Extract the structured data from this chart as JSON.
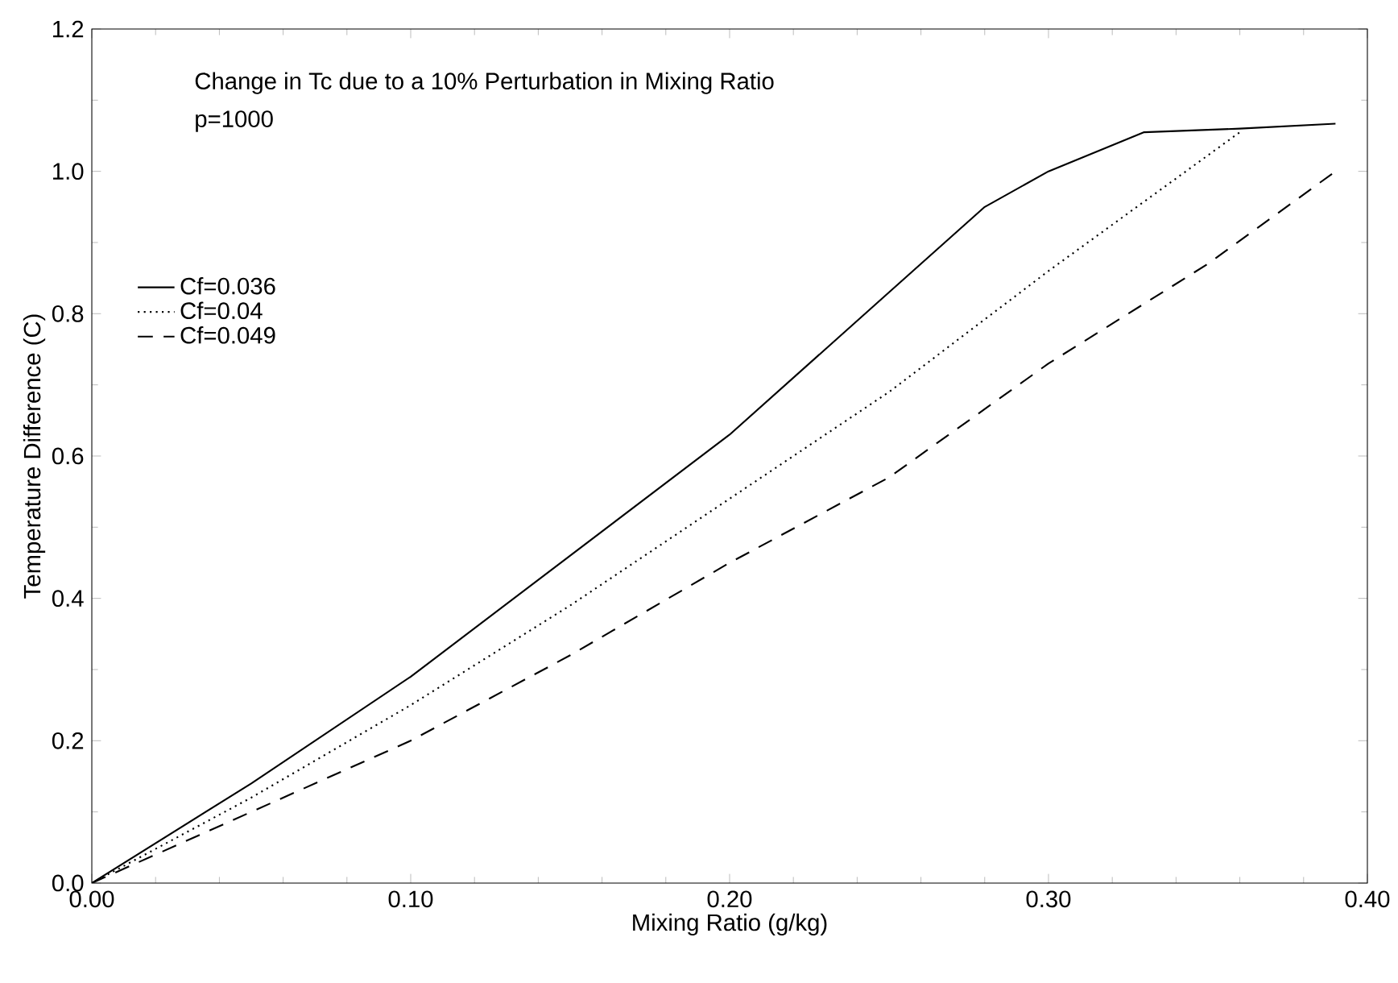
{
  "chart_data": {
    "type": "line",
    "xlabel": "Mixing Ratio (g/kg)",
    "ylabel": "Temperature Difference (C)",
    "annotations": [
      "Change in Tc due to a 10% Perturbation in Mixing Ratio",
      "p=1000"
    ],
    "xlim": [
      0,
      0.4
    ],
    "ylim": [
      0,
      1.2
    ],
    "xticks": [
      {
        "value": 0,
        "label": "0.00"
      },
      {
        "value": 0.1,
        "label": "0.10"
      },
      {
        "value": 0.2,
        "label": "0.20"
      },
      {
        "value": 0.3,
        "label": "0.30"
      },
      {
        "value": 0.4,
        "label": "0.40"
      }
    ],
    "yticks": [
      {
        "value": 0,
        "label": "0.0"
      },
      {
        "value": 0.2,
        "label": "0.2"
      },
      {
        "value": 0.4,
        "label": "0.4"
      },
      {
        "value": 0.6,
        "label": "0.6"
      },
      {
        "value": 0.8,
        "label": "0.8"
      },
      {
        "value": 1.0,
        "label": "1.0"
      },
      {
        "value": 1.2,
        "label": "1.2"
      }
    ],
    "legend": "left",
    "grid": false,
    "series": [
      {
        "name": "Cf=0.036",
        "color": "#000000",
        "line_style": "solid",
        "x": [
          0,
          0.05,
          0.1,
          0.15,
          0.2,
          0.25,
          0.28,
          0.3,
          0.33,
          0.36,
          0.39
        ],
        "values": [
          0,
          0.14,
          0.29,
          0.46,
          0.63,
          0.83,
          0.95,
          1.0,
          1.055,
          1.06,
          1.067
        ]
      },
      {
        "name": "Cf=0.04",
        "color": "#000000",
        "line_style": "dotted",
        "x": [
          0,
          0.05,
          0.1,
          0.15,
          0.2,
          0.25,
          0.3,
          0.36
        ],
        "values": [
          0,
          0.12,
          0.25,
          0.39,
          0.54,
          0.69,
          0.86,
          1.055
        ]
      },
      {
        "name": "Cf=0.049",
        "color": "#000000",
        "line_style": "dashed",
        "x": [
          0,
          0.05,
          0.1,
          0.15,
          0.2,
          0.25,
          0.3,
          0.35,
          0.39
        ],
        "values": [
          0,
          0.1,
          0.2,
          0.32,
          0.45,
          0.57,
          0.73,
          0.87,
          1.0
        ]
      }
    ]
  }
}
